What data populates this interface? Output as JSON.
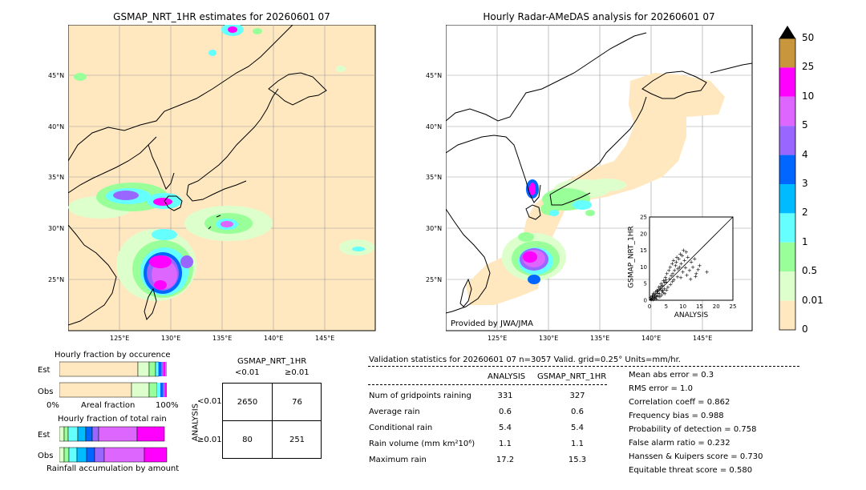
{
  "left_map": {
    "title": "GSMAP_NRT_1HR estimates for 20260601 07",
    "lat_labels": [
      "45°N",
      "40°N",
      "35°N",
      "30°N",
      "25°N"
    ],
    "lon_labels": [
      "125°E",
      "130°E",
      "135°E",
      "140°E",
      "145°E"
    ]
  },
  "right_map": {
    "title": "Hourly Radar-AMeDAS analysis for 20260601 07",
    "lat_labels": [
      "45°N",
      "40°N",
      "35°N",
      "30°N",
      "25°N"
    ],
    "lon_labels": [
      "125°E",
      "130°E",
      "135°E",
      "140°E",
      "145°E"
    ],
    "credit": "Provided by JWA/JMA"
  },
  "scatter": {
    "ylabel": "GSMAP_NRT_1HR",
    "xlabel": "ANALYSIS",
    "ticks": [
      "0",
      "5",
      "10",
      "15",
      "20",
      "25"
    ]
  },
  "colorbar": {
    "labels": [
      "50",
      "25",
      "10",
      "5",
      "4",
      "3",
      "2",
      "1",
      "0.5",
      "0.01",
      "0"
    ],
    "colors": [
      "#c8963c",
      "#ff00ff",
      "#dd66ff",
      "#9966ff",
      "#0066ff",
      "#00bbff",
      "#66ffff",
      "#99ff99",
      "#ddffcc",
      "#ffe8c0"
    ],
    "arrow_color": "#000000"
  },
  "fraction_occurrence": {
    "title": "Hourly fraction by occurence",
    "rows": [
      "Est",
      "Obs"
    ],
    "axis_left": "0%",
    "axis_mid": "Areal fraction",
    "axis_right": "100%"
  },
  "fraction_total": {
    "title": "Hourly fraction of total rain",
    "rows": [
      "Est",
      "Obs"
    ],
    "axis_label": "Rainfall accumulation by amount"
  },
  "contingency": {
    "title": "GSMAP_NRT_1HR",
    "col_labels": [
      "<0.01",
      "≥0.01"
    ],
    "row_axis": "ANALYSIS",
    "row_labels": [
      "<0.01",
      "≥0.01"
    ],
    "cells": [
      [
        "2650",
        "76"
      ],
      [
        "80",
        "251"
      ]
    ]
  },
  "validation": {
    "header": "Validation statistics for 20260601 07  n=3057 Valid. grid=0.25° Units=mm/hr.",
    "col_analysis": "ANALYSIS",
    "col_gsmap": "GSMAP_NRT_1HR",
    "rows": [
      {
        "label": "Num of gridpoints raining",
        "a": "331",
        "g": "327"
      },
      {
        "label": "Average rain",
        "a": "0.6",
        "g": "0.6"
      },
      {
        "label": "Conditional rain",
        "a": "5.4",
        "g": "5.4"
      },
      {
        "label": "Rain volume (mm km²10⁶)",
        "a": "1.1",
        "g": "1.1"
      },
      {
        "label": "Maximum rain",
        "a": "17.2",
        "g": "15.3"
      }
    ],
    "scores": [
      "Mean abs error =    0.3",
      "RMS error =    1.0",
      "Correlation coeff =  0.862",
      "Frequency bias =  0.988",
      "Probability of detection =  0.758",
      "False alarm ratio =  0.232",
      "Hanssen & Kuipers score =  0.730",
      "Equitable threat score =  0.580"
    ]
  },
  "chart_data": [
    {
      "type": "heatmap",
      "title": "GSMAP_NRT_1HR estimates for 20260601 07",
      "x_ticks": [
        "125°E",
        "130°E",
        "135°E",
        "140°E",
        "145°E"
      ],
      "y_ticks": [
        "45°N",
        "40°N",
        "35°N",
        "30°N",
        "25°N"
      ],
      "xlim": [
        120,
        150
      ],
      "ylim": [
        20,
        50
      ]
    },
    {
      "type": "heatmap",
      "title": "Hourly Radar-AMeDAS analysis for 20260601 07",
      "x_ticks": [
        "125°E",
        "130°E",
        "135°E",
        "140°E",
        "145°E"
      ],
      "y_ticks": [
        "45°N",
        "40°N",
        "35°N",
        "30°N",
        "25°N"
      ],
      "xlim": [
        120,
        150
      ],
      "ylim": [
        20,
        50
      ]
    },
    {
      "type": "scatter",
      "xlabel": "ANALYSIS",
      "ylabel": "GSMAP_NRT_1HR",
      "xlim": [
        0,
        25
      ],
      "ylim": [
        0,
        25
      ],
      "points": [
        [
          0.5,
          0.3
        ],
        [
          0.8,
          1.2
        ],
        [
          1.0,
          0.6
        ],
        [
          1.2,
          2.0
        ],
        [
          1.5,
          1.0
        ],
        [
          1.8,
          2.5
        ],
        [
          2.0,
          1.5
        ],
        [
          2.2,
          3.0
        ],
        [
          2.5,
          2.2
        ],
        [
          2.8,
          4.0
        ],
        [
          3.0,
          2.0
        ],
        [
          3.2,
          3.5
        ],
        [
          3.5,
          5.0
        ],
        [
          3.8,
          2.8
        ],
        [
          4.0,
          4.5
        ],
        [
          4.2,
          6.0
        ],
        [
          4.5,
          3.5
        ],
        [
          4.8,
          7.0
        ],
        [
          5.0,
          5.5
        ],
        [
          5.2,
          8.0
        ],
        [
          5.5,
          4.0
        ],
        [
          5.8,
          9.0
        ],
        [
          6.0,
          6.5
        ],
        [
          6.2,
          10.0
        ],
        [
          6.5,
          7.5
        ],
        [
          6.8,
          11.0
        ],
        [
          7.0,
          8.0
        ],
        [
          7.2,
          12.0
        ],
        [
          7.5,
          9.0
        ],
        [
          7.8,
          10.5
        ],
        [
          8.0,
          11.5
        ],
        [
          8.2,
          13.0
        ],
        [
          8.5,
          9.5
        ],
        [
          8.8,
          12.5
        ],
        [
          9.0,
          10.0
        ],
        [
          9.2,
          14.0
        ],
        [
          9.5,
          11.0
        ],
        [
          9.8,
          13.5
        ],
        [
          10.0,
          8.5
        ],
        [
          10.2,
          15.0
        ],
        [
          10.5,
          12.0
        ],
        [
          11.0,
          14.5
        ],
        [
          11.5,
          13.0
        ],
        [
          12.0,
          9.0
        ],
        [
          12.5,
          11.5
        ],
        [
          13.0,
          10.0
        ],
        [
          13.5,
          12.5
        ],
        [
          14.0,
          8.0
        ],
        [
          15.0,
          10.5
        ],
        [
          17.2,
          8.5
        ],
        [
          0.3,
          0.8
        ],
        [
          0.6,
          0.4
        ],
        [
          0.9,
          1.5
        ],
        [
          1.1,
          0.2
        ],
        [
          1.4,
          1.8
        ],
        [
          1.6,
          0.7
        ],
        [
          1.9,
          1.1
        ],
        [
          2.1,
          0.5
        ],
        [
          2.4,
          2.9
        ],
        [
          2.6,
          1.3
        ],
        [
          2.9,
          3.3
        ],
        [
          3.1,
          1.1
        ],
        [
          3.4,
          4.2
        ],
        [
          3.6,
          1.6
        ],
        [
          3.9,
          3.0
        ],
        [
          4.1,
          2.3
        ],
        [
          4.4,
          5.4
        ],
        [
          4.6,
          2.0
        ],
        [
          4.9,
          6.3
        ],
        [
          5.1,
          3.1
        ],
        [
          6.3,
          4.8
        ],
        [
          6.9,
          5.6
        ],
        [
          7.3,
          6.2
        ],
        [
          8.4,
          7.1
        ],
        [
          9.4,
          6.8
        ],
        [
          11.2,
          7.6
        ],
        [
          12.3,
          6.4
        ],
        [
          14.6,
          9.3
        ],
        [
          13.8,
          7.2
        ],
        [
          10.8,
          9.8
        ]
      ]
    }
  ]
}
